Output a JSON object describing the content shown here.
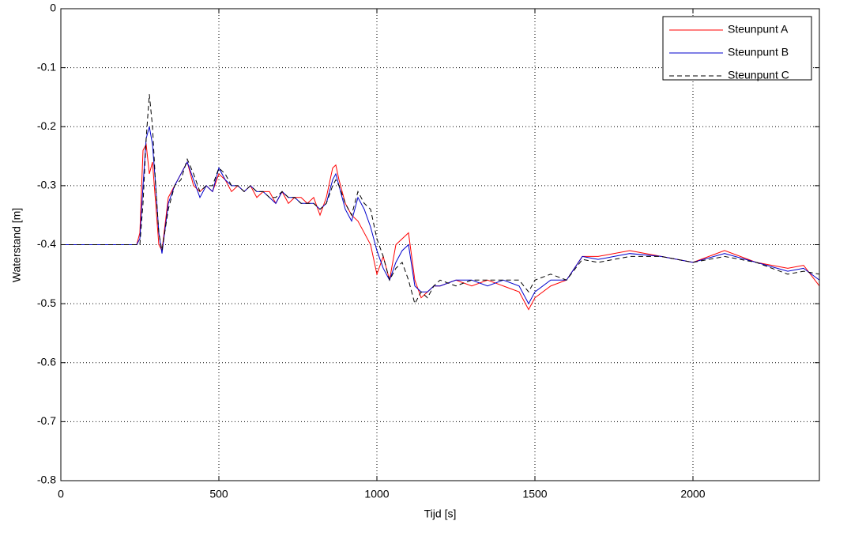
{
  "chart_data": {
    "type": "line",
    "xlabel": "Tijd [s]",
    "ylabel": "Waterstand [m]",
    "x": [
      0,
      240,
      250,
      260,
      270,
      280,
      290,
      300,
      310,
      320,
      340,
      360,
      380,
      400,
      420,
      440,
      460,
      480,
      500,
      520,
      540,
      560,
      580,
      600,
      620,
      640,
      660,
      680,
      700,
      720,
      740,
      760,
      780,
      800,
      820,
      840,
      860,
      870,
      880,
      900,
      920,
      940,
      960,
      980,
      1000,
      1020,
      1040,
      1060,
      1080,
      1100,
      1120,
      1140,
      1160,
      1180,
      1200,
      1250,
      1300,
      1350,
      1400,
      1450,
      1480,
      1500,
      1550,
      1600,
      1650,
      1700,
      1800,
      1900,
      2000,
      2100,
      2200,
      2300,
      2350,
      2400
    ],
    "series": [
      {
        "name": "Steunpunt A",
        "color": "#ff0000",
        "style": "solid",
        "values": [
          -0.4,
          -0.4,
          -0.38,
          -0.24,
          -0.23,
          -0.28,
          -0.26,
          -0.33,
          -0.4,
          -0.41,
          -0.32,
          -0.3,
          -0.28,
          -0.26,
          -0.3,
          -0.31,
          -0.3,
          -0.31,
          -0.28,
          -0.29,
          -0.31,
          -0.3,
          -0.31,
          -0.3,
          -0.32,
          -0.31,
          -0.31,
          -0.33,
          -0.31,
          -0.33,
          -0.32,
          -0.32,
          -0.33,
          -0.32,
          -0.35,
          -0.32,
          -0.27,
          -0.265,
          -0.29,
          -0.33,
          -0.35,
          -0.36,
          -0.38,
          -0.4,
          -0.45,
          -0.42,
          -0.46,
          -0.4,
          -0.39,
          -0.38,
          -0.46,
          -0.49,
          -0.48,
          -0.47,
          -0.47,
          -0.46,
          -0.47,
          -0.46,
          -0.47,
          -0.48,
          -0.51,
          -0.49,
          -0.47,
          -0.46,
          -0.42,
          -0.42,
          -0.41,
          -0.42,
          -0.43,
          -0.41,
          -0.43,
          -0.44,
          -0.435,
          -0.47
        ]
      },
      {
        "name": "Steunpunt B",
        "color": "#0000cc",
        "style": "solid",
        "values": [
          -0.4,
          -0.4,
          -0.39,
          -0.3,
          -0.22,
          -0.2,
          -0.23,
          -0.3,
          -0.38,
          -0.415,
          -0.33,
          -0.3,
          -0.28,
          -0.26,
          -0.29,
          -0.32,
          -0.3,
          -0.31,
          -0.27,
          -0.29,
          -0.3,
          -0.3,
          -0.31,
          -0.3,
          -0.31,
          -0.31,
          -0.32,
          -0.33,
          -0.31,
          -0.32,
          -0.32,
          -0.33,
          -0.33,
          -0.33,
          -0.34,
          -0.33,
          -0.29,
          -0.28,
          -0.3,
          -0.34,
          -0.36,
          -0.32,
          -0.34,
          -0.37,
          -0.41,
          -0.44,
          -0.46,
          -0.43,
          -0.41,
          -0.4,
          -0.47,
          -0.48,
          -0.48,
          -0.47,
          -0.47,
          -0.46,
          -0.46,
          -0.47,
          -0.46,
          -0.47,
          -0.5,
          -0.48,
          -0.46,
          -0.46,
          -0.42,
          -0.425,
          -0.415,
          -0.42,
          -0.43,
          -0.415,
          -0.43,
          -0.445,
          -0.44,
          -0.46
        ]
      },
      {
        "name": "Steunpunt C",
        "color": "#000000",
        "style": "dashed",
        "values": [
          -0.4,
          -0.4,
          -0.4,
          -0.33,
          -0.22,
          -0.145,
          -0.2,
          -0.3,
          -0.38,
          -0.41,
          -0.34,
          -0.3,
          -0.29,
          -0.255,
          -0.28,
          -0.31,
          -0.3,
          -0.3,
          -0.27,
          -0.28,
          -0.3,
          -0.3,
          -0.31,
          -0.3,
          -0.31,
          -0.31,
          -0.32,
          -0.32,
          -0.31,
          -0.32,
          -0.32,
          -0.33,
          -0.33,
          -0.33,
          -0.34,
          -0.33,
          -0.3,
          -0.29,
          -0.3,
          -0.33,
          -0.35,
          -0.31,
          -0.33,
          -0.34,
          -0.39,
          -0.42,
          -0.46,
          -0.44,
          -0.43,
          -0.46,
          -0.5,
          -0.48,
          -0.49,
          -0.47,
          -0.46,
          -0.47,
          -0.46,
          -0.46,
          -0.46,
          -0.46,
          -0.48,
          -0.46,
          -0.45,
          -0.46,
          -0.425,
          -0.43,
          -0.42,
          -0.42,
          -0.43,
          -0.42,
          -0.43,
          -0.45,
          -0.445,
          -0.45
        ]
      }
    ],
    "xlim": [
      0,
      2400
    ],
    "ylim": [
      -0.8,
      0
    ],
    "xticks": [
      0,
      500,
      1000,
      1500,
      2000
    ],
    "yticks": [
      0,
      -0.1,
      -0.2,
      -0.3,
      -0.4,
      -0.5,
      -0.6,
      -0.7,
      -0.8
    ],
    "grid": true,
    "legend": "northeast"
  }
}
